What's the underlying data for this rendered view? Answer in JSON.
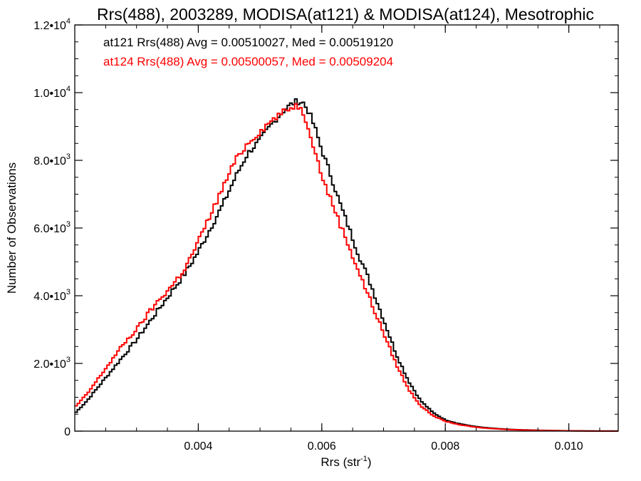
{
  "chart_data": {
    "type": "line",
    "title": "Rrs(488), 2003289, MODISA(at121) & MODISA(at124), Mesotrophic",
    "xlabel_main": "Rrs (str",
    "xlabel_sup": "-1",
    "xlabel_close": ")",
    "ylabel": "Number of Observations",
    "xlim": [
      0.002,
      0.0108
    ],
    "ylim": [
      0,
      12000
    ],
    "x_ticks": [
      {
        "value": 0.004,
        "label": "0.004"
      },
      {
        "value": 0.006,
        "label": "0.006"
      },
      {
        "value": 0.008,
        "label": "0.008"
      },
      {
        "value": 0.01,
        "label": "0.010"
      }
    ],
    "y_ticks": [
      {
        "value": 0,
        "label": "0",
        "sup": ""
      },
      {
        "value": 2000,
        "label": "2.0•10",
        "sup": "3"
      },
      {
        "value": 4000,
        "label": "4.0•10",
        "sup": "3"
      },
      {
        "value": 6000,
        "label": "6.0•10",
        "sup": "3"
      },
      {
        "value": 8000,
        "label": "8.0•10",
        "sup": "3"
      },
      {
        "value": 10000,
        "label": "1.0•10",
        "sup": "4"
      },
      {
        "value": 12000,
        "label": "1.2•10",
        "sup": "4"
      }
    ],
    "annotations": [
      {
        "text": "at121 Rrs(488) Avg = 0.00510027, Med = 0.00519120",
        "color": "#000000"
      },
      {
        "text": "at124 Rrs(488) Avg = 0.00500057, Med = 0.00509204",
        "color": "#ff0000"
      }
    ],
    "series": [
      {
        "color": "#000000",
        "x": [
          0.002,
          0.0022,
          0.0024,
          0.0026,
          0.0028,
          0.003,
          0.0032,
          0.0034,
          0.0036,
          0.0038,
          0.004,
          0.0042,
          0.0044,
          0.0046,
          0.0048,
          0.005,
          0.0052,
          0.0054,
          0.0055,
          0.0056,
          0.0057,
          0.0058,
          0.0059,
          0.006,
          0.0061,
          0.0062,
          0.0063,
          0.0064,
          0.0066,
          0.0068,
          0.007,
          0.0072,
          0.0074,
          0.0076,
          0.0078,
          0.008,
          0.0082,
          0.0084,
          0.0086,
          0.0088,
          0.009,
          0.0092,
          0.0094,
          0.0096,
          0.0098,
          0.01,
          0.0102,
          0.0104,
          0.0106,
          0.0108
        ],
        "y": [
          520,
          900,
          1350,
          1800,
          2250,
          2700,
          3200,
          3700,
          4200,
          4700,
          5300,
          6000,
          6700,
          7500,
          8200,
          8600,
          9100,
          9500,
          9650,
          9750,
          9700,
          9400,
          8900,
          8300,
          7800,
          7250,
          6700,
          6200,
          5200,
          4300,
          3300,
          2300,
          1500,
          900,
          550,
          330,
          230,
          160,
          110,
          80,
          55,
          40,
          30,
          22,
          15,
          10,
          7,
          4,
          3,
          2
        ]
      },
      {
        "color": "#ff0000",
        "x": [
          0.002,
          0.0022,
          0.0024,
          0.0026,
          0.0028,
          0.003,
          0.0032,
          0.0034,
          0.0036,
          0.0038,
          0.004,
          0.0042,
          0.0044,
          0.0046,
          0.0048,
          0.005,
          0.0052,
          0.0054,
          0.0055,
          0.0056,
          0.0057,
          0.0058,
          0.0059,
          0.006,
          0.0061,
          0.0062,
          0.0063,
          0.0064,
          0.0066,
          0.0068,
          0.007,
          0.0072,
          0.0074,
          0.0076,
          0.0078,
          0.008,
          0.0082,
          0.0084,
          0.0086,
          0.0088,
          0.009,
          0.0092,
          0.0094,
          0.0096,
          0.0098,
          0.01,
          0.0102,
          0.0104,
          0.0106,
          0.0108
        ],
        "y": [
          700,
          1100,
          1600,
          2100,
          2600,
          3000,
          3500,
          3950,
          4350,
          4850,
          5600,
          6400,
          7200,
          8000,
          8500,
          8850,
          9200,
          9450,
          9550,
          9650,
          9400,
          8900,
          8200,
          7550,
          7050,
          6600,
          6100,
          5650,
          4700,
          3800,
          2900,
          2000,
          1250,
          750,
          460,
          290,
          200,
          140,
          95,
          70,
          50,
          35,
          25,
          18,
          12,
          8,
          5,
          3,
          2,
          1
        ]
      }
    ]
  }
}
